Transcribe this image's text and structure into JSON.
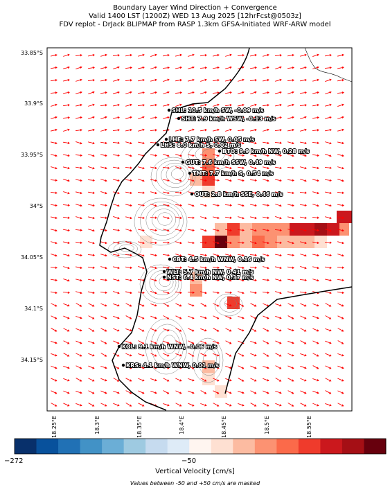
{
  "header": {
    "line1": "Boundary Layer Wind Direction + Convergence",
    "line2": "Valid 1400 LST (1200Z) WED 13 Aug 2025 [12hrFcst@0503z]",
    "line3": "FDV replot - DrJack BLIPMAP from RASP 1.3km GFSA-Initiated WRF-ARW model"
  },
  "axes": {
    "lat_labels": [
      "33.85°S",
      "33.9°S",
      "33.95°S",
      "34°S",
      "34.05°S",
      "34.1°S",
      "34.15°S"
    ],
    "lon_labels": [
      "18.25°E",
      "18.3°E",
      "18.35°E",
      "18.4°E",
      "18.45°E",
      "18.5°E",
      "18.55°E"
    ]
  },
  "stations": [
    {
      "code": "SHL",
      "text": "SHL: 10.5 km/h SW, -0.09 m/s"
    },
    {
      "code": "SHT",
      "text": "SHT: 7.9 km/h WSW, -0.13 m/s"
    },
    {
      "code": "LHE",
      "text": "LHE: 7.7 km/h SW, 0.05 m/s"
    },
    {
      "code": "LHS",
      "text": "LHS: 8.0 km/h S, 0.02 m/s"
    },
    {
      "code": "BTO",
      "text": "BTO: 9.9 km/h NW, 0.28 m/s"
    },
    {
      "code": "GUT",
      "text": "GUT: 7.6 km/h SSW, 0.49 m/s"
    },
    {
      "code": "TMT",
      "text": "TMT: 7.7 km/h S, 0.54 m/s"
    },
    {
      "code": "OUT",
      "text": "OUT: 2.8 km/h SSE, 0.46 m/s"
    },
    {
      "code": "CBT",
      "text": "CBT: 4.5 km/h WNW, 0.16 m/s"
    },
    {
      "code": "WLT",
      "text": "WLT: 5.7 km/h NW, 0.41 m/s"
    },
    {
      "code": "NST",
      "text": "NST: 6.4 km/h NW, 0.37 m/s"
    },
    {
      "code": "KOL",
      "text": "KOL: 9.1 km/h WNW, -0.06 m/s"
    },
    {
      "code": "KRS",
      "text": "KRS: 4.1 km/h WNW, 0.01 m/s"
    }
  ],
  "colorbar": {
    "tick_min": "−272",
    "tick_mid": "−50",
    "label": "Vertical Velocity [cm/s]",
    "colors": [
      "#08306b",
      "#08519c",
      "#2171b5",
      "#4292c6",
      "#6baed6",
      "#9ecae1",
      "#c6dbef",
      "#deebf7",
      "#fff5f0",
      "#fee0d2",
      "#fcbba1",
      "#fc9272",
      "#fb6a4a",
      "#ef3b2c",
      "#cb181d",
      "#a50f15",
      "#67000d"
    ]
  },
  "footnote": "Values between -50 and +50 cm/s are masked",
  "colors": {
    "wind_arrow": "#ff0000",
    "coastline": "#000000",
    "contour": "#808080"
  }
}
